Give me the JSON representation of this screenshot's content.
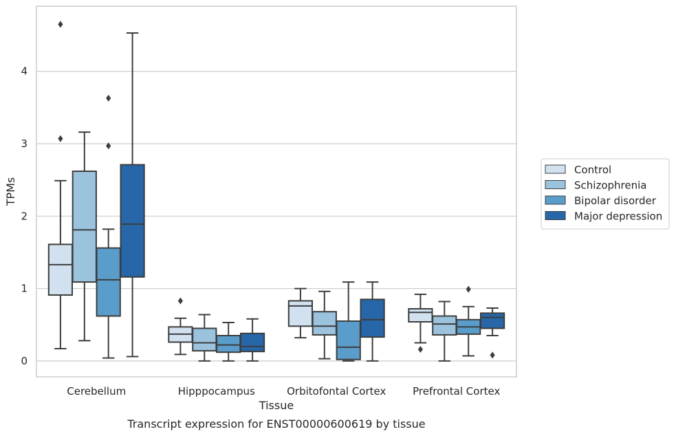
{
  "chart_data": {
    "type": "box",
    "xlabel": "Tissue",
    "ylabel": "TPMs",
    "caption": "Transcript expression for ENST00000600619 by tissue",
    "ylim": [
      -0.22,
      4.9
    ],
    "yticks": [
      0,
      1,
      2,
      3,
      4
    ],
    "grid": "horizontal",
    "legend_position": "right",
    "categories": [
      "Cerebellum",
      "Hipppocampus",
      "Orbitofontal Cortex",
      "Prefrontal Cortex"
    ],
    "series": [
      {
        "name": "Control",
        "color": "#d1e1f0",
        "boxes": [
          {
            "whislo": 0.17,
            "q1": 0.91,
            "med": 1.33,
            "q3": 1.61,
            "whishi": 2.49,
            "fliers": [
              3.07,
              4.65
            ]
          },
          {
            "whislo": 0.09,
            "q1": 0.26,
            "med": 0.37,
            "q3": 0.47,
            "whishi": 0.59,
            "fliers": [
              0.83
            ]
          },
          {
            "whislo": 0.32,
            "q1": 0.48,
            "med": 0.76,
            "q3": 0.83,
            "whishi": 1.0,
            "fliers": []
          },
          {
            "whislo": 0.25,
            "q1": 0.54,
            "med": 0.67,
            "q3": 0.72,
            "whishi": 0.92,
            "fliers": [
              0.16
            ]
          }
        ]
      },
      {
        "name": "Schizophrenia",
        "color": "#9bc3de",
        "boxes": [
          {
            "whislo": 0.28,
            "q1": 1.09,
            "med": 1.81,
            "q3": 2.62,
            "whishi": 3.16,
            "fliers": []
          },
          {
            "whislo": 0.0,
            "q1": 0.14,
            "med": 0.25,
            "q3": 0.45,
            "whishi": 0.64,
            "fliers": []
          },
          {
            "whislo": 0.03,
            "q1": 0.36,
            "med": 0.48,
            "q3": 0.68,
            "whishi": 0.96,
            "fliers": []
          },
          {
            "whislo": 0.0,
            "q1": 0.36,
            "med": 0.51,
            "q3": 0.62,
            "whishi": 0.82,
            "fliers": []
          }
        ]
      },
      {
        "name": "Bipolar disorder",
        "color": "#5a9dca",
        "boxes": [
          {
            "whislo": 0.04,
            "q1": 0.62,
            "med": 1.12,
            "q3": 1.56,
            "whishi": 1.82,
            "fliers": [
              2.97,
              3.63
            ]
          },
          {
            "whislo": 0.0,
            "q1": 0.12,
            "med": 0.22,
            "q3": 0.35,
            "whishi": 0.53,
            "fliers": []
          },
          {
            "whislo": 0.0,
            "q1": 0.02,
            "med": 0.19,
            "q3": 0.55,
            "whishi": 1.09,
            "fliers": []
          },
          {
            "whislo": 0.07,
            "q1": 0.37,
            "med": 0.47,
            "q3": 0.57,
            "whishi": 0.75,
            "fliers": [
              0.99
            ]
          }
        ]
      },
      {
        "name": "Major depression",
        "color": "#2766a8",
        "boxes": [
          {
            "whislo": 0.06,
            "q1": 1.16,
            "med": 1.89,
            "q3": 2.71,
            "whishi": 4.53,
            "fliers": []
          },
          {
            "whislo": 0.0,
            "q1": 0.13,
            "med": 0.2,
            "q3": 0.38,
            "whishi": 0.58,
            "fliers": []
          },
          {
            "whislo": 0.0,
            "q1": 0.33,
            "med": 0.57,
            "q3": 0.85,
            "whishi": 1.09,
            "fliers": []
          },
          {
            "whislo": 0.35,
            "q1": 0.45,
            "med": 0.6,
            "q3": 0.66,
            "whishi": 0.73,
            "fliers": [
              0.08
            ]
          }
        ]
      }
    ]
  }
}
